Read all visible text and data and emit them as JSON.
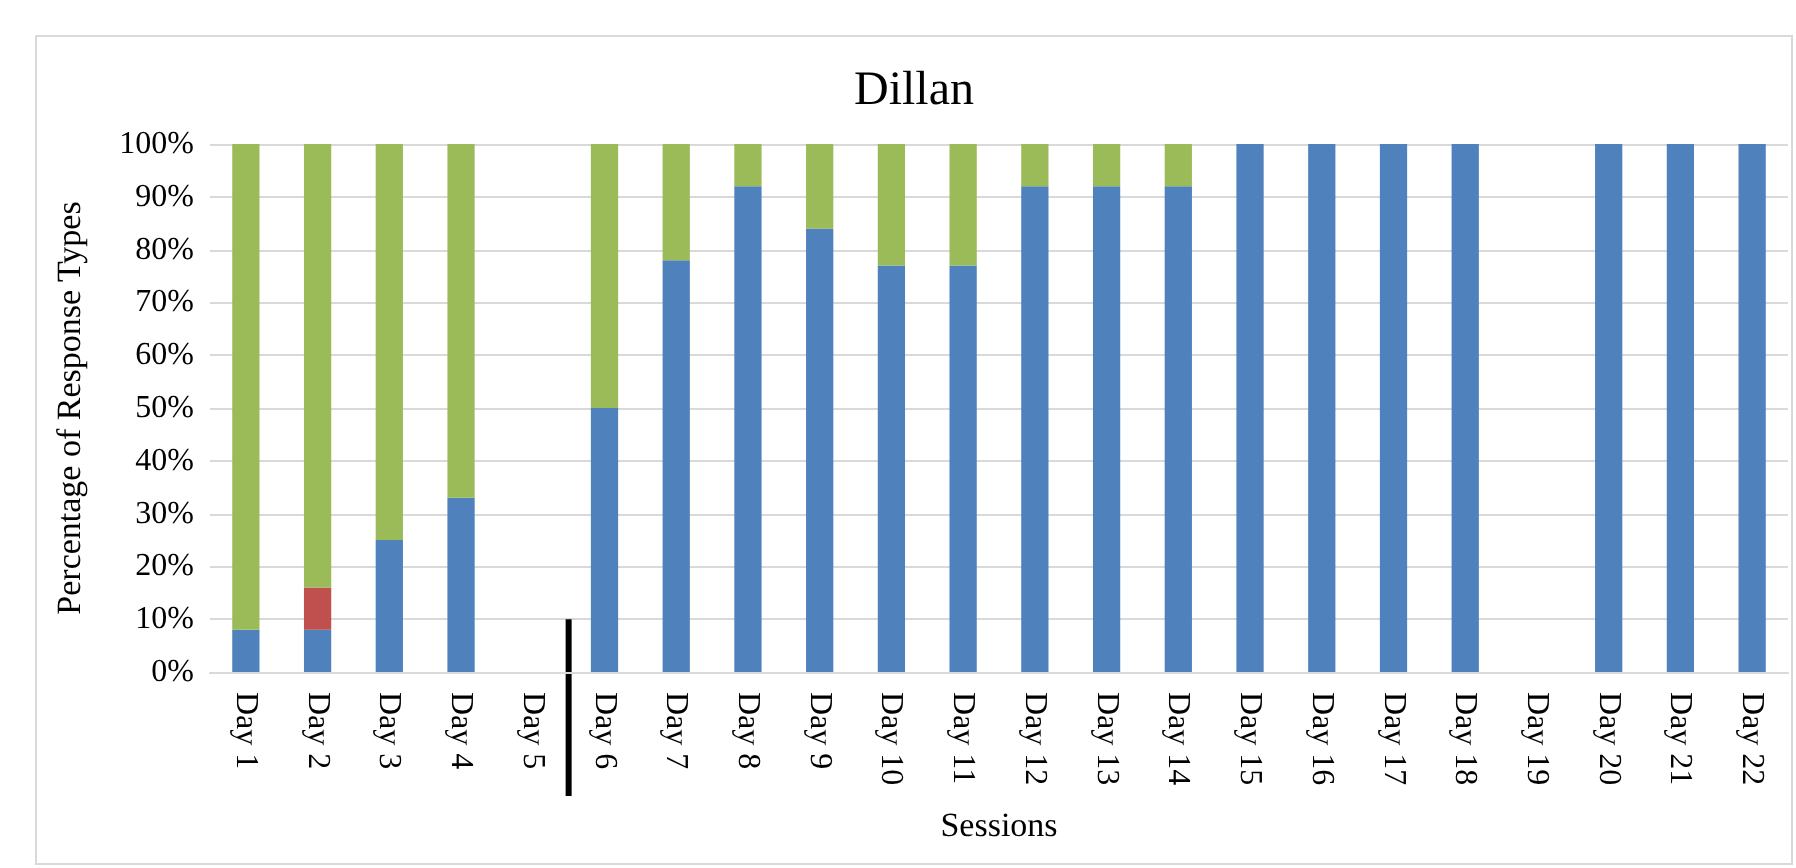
{
  "chart_data": {
    "type": "bar",
    "title": "Dillan",
    "xlabel": "Sessions",
    "ylabel": "Percentage of Response Types",
    "categories": [
      "Day 1",
      "Day 2",
      "Day 3",
      "Day 4",
      "Day 5",
      "Day 6",
      "Day 7",
      "Day 8",
      "Day 9",
      "Day 10",
      "Day 11",
      "Day 12",
      "Day 13",
      "Day 14",
      "Day 15",
      "Day 16",
      "Day 17",
      "Day 18",
      "Day 19",
      "Day 20",
      "Day 21",
      "Day 22"
    ],
    "stacked": true,
    "series": [
      {
        "color": "#4f81bd",
        "values": [
          8,
          8,
          25,
          33,
          null,
          50,
          78,
          92,
          84,
          77,
          77,
          92,
          92,
          92,
          100,
          100,
          100,
          100,
          null,
          100,
          100,
          100
        ]
      },
      {
        "color": "#c0504d",
        "values": [
          null,
          8,
          null,
          null,
          null,
          null,
          null,
          null,
          null,
          null,
          null,
          null,
          null,
          null,
          null,
          null,
          null,
          null,
          null,
          null,
          null,
          null
        ]
      },
      {
        "color": "#9bbb59",
        "values": [
          92,
          84,
          75,
          67,
          null,
          50,
          22,
          8,
          16,
          23,
          23,
          8,
          8,
          8,
          null,
          null,
          null,
          null,
          null,
          null,
          null,
          null
        ]
      }
    ],
    "ylim": [
      0,
      100
    ],
    "yticks": [
      {
        "value": 0,
        "label": "0%"
      },
      {
        "value": 10,
        "label": "10%"
      },
      {
        "value": 20,
        "label": "20%"
      },
      {
        "value": 30,
        "label": "30%"
      },
      {
        "value": 40,
        "label": "40%"
      },
      {
        "value": 50,
        "label": "50%"
      },
      {
        "value": 60,
        "label": "60%"
      },
      {
        "value": 70,
        "label": "70%"
      },
      {
        "value": 80,
        "label": "80%"
      },
      {
        "value": 90,
        "label": "90%"
      },
      {
        "value": 100,
        "label": "100%"
      }
    ],
    "grid": "y"
  }
}
